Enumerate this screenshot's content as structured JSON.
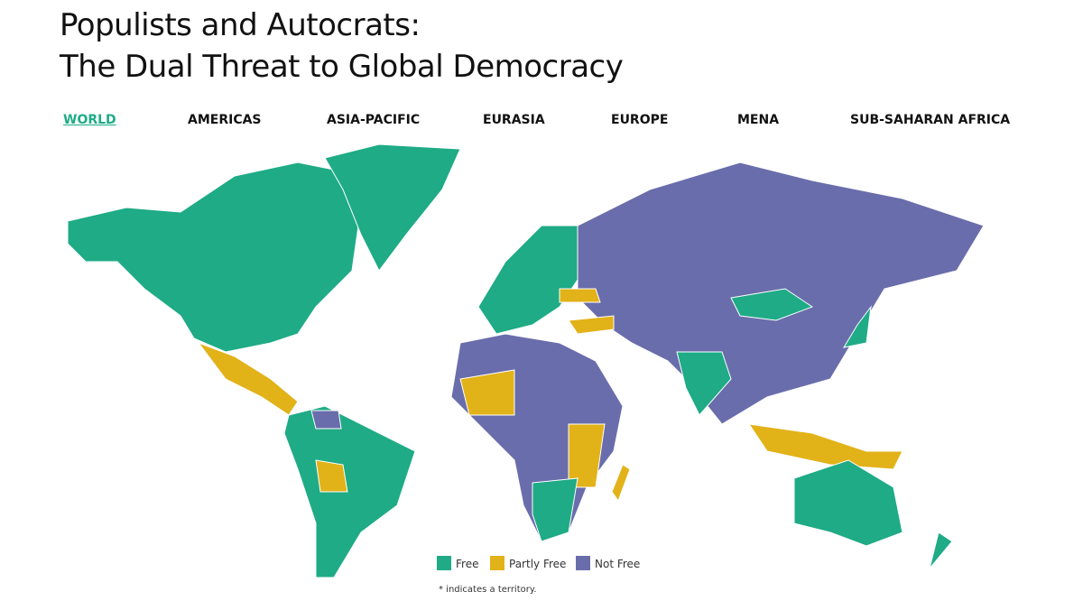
{
  "header": {
    "title_lines": [
      "Populists and Autocrats:",
      "The Dual Threat to Global Democracy"
    ]
  },
  "nav": {
    "items": [
      "WORLD",
      "AMERICAS",
      "ASIA-PACIFIC",
      "EURASIA",
      "EUROPE",
      "MENA",
      "SUB-SAHARAN AFRICA"
    ],
    "active": 0
  },
  "legend": {
    "items": [
      {
        "label": "Free",
        "color": "#1eab86"
      },
      {
        "label": "Partly Free",
        "color": "#e2b219"
      },
      {
        "label": "Not Free",
        "color": "#6a6dab"
      }
    ]
  },
  "footnote": "* indicates a territory."
}
